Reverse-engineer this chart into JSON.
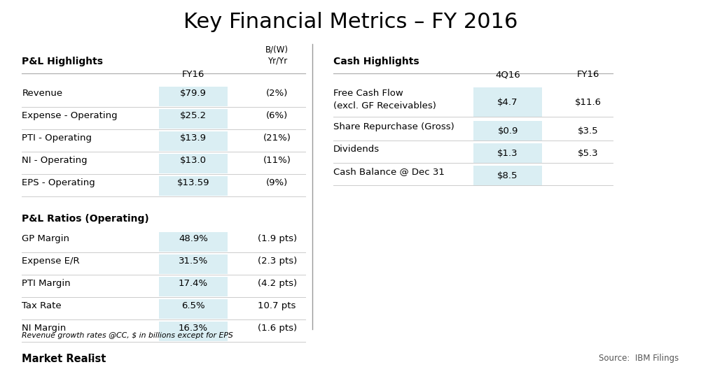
{
  "title": "Key Financial Metrics – FY 2016",
  "title_fontsize": 22,
  "background_color": "#ffffff",
  "highlight_color": "#daeef3",
  "text_color": "#000000",
  "pl_highlights_header": "P&L Highlights",
  "pl_col1_header": "FY16",
  "pl_col2_header": "B/(W)\nYr/Yr",
  "pl_rows": [
    [
      "Revenue",
      "$79.9",
      "(2%)"
    ],
    [
      "Expense - Operating",
      "$25.2",
      "(6%)"
    ],
    [
      "PTI - Operating",
      "$13.9",
      "(21%)"
    ],
    [
      "NI - Operating",
      "$13.0",
      "(11%)"
    ],
    [
      "EPS - Operating",
      "$13.59",
      "(9%)"
    ]
  ],
  "pl_ratios_header": "P&L Ratios (Operating)",
  "pl_ratios_rows": [
    [
      "GP Margin",
      "48.9%",
      "(1.9 pts)"
    ],
    [
      "Expense E/R",
      "31.5%",
      "(2.3 pts)"
    ],
    [
      "PTI Margin",
      "17.4%",
      "(4.2 pts)"
    ],
    [
      "Tax Rate",
      "6.5%",
      "10.7 pts"
    ],
    [
      "NI Margin",
      "16.3%",
      "(1.6 pts)"
    ]
  ],
  "cash_highlights_header": "Cash Highlights",
  "cash_col1_header": "4Q16",
  "cash_col2_header": "FY16",
  "cash_rows": [
    [
      "Free Cash Flow\n(excl. GF Receivables)",
      "$4.7",
      "$11.6"
    ],
    [
      "Share Repurchase (Gross)",
      "$0.9",
      "$3.5"
    ],
    [
      "Dividends",
      "$1.3",
      "$5.3"
    ],
    [
      "Cash Balance @ Dec 31",
      "$8.5",
      ""
    ]
  ],
  "footnote": "Revenue growth rates @CC, $ in billions except for EPS",
  "source": "Source:  IBM Filings",
  "brand": "Market Realist"
}
